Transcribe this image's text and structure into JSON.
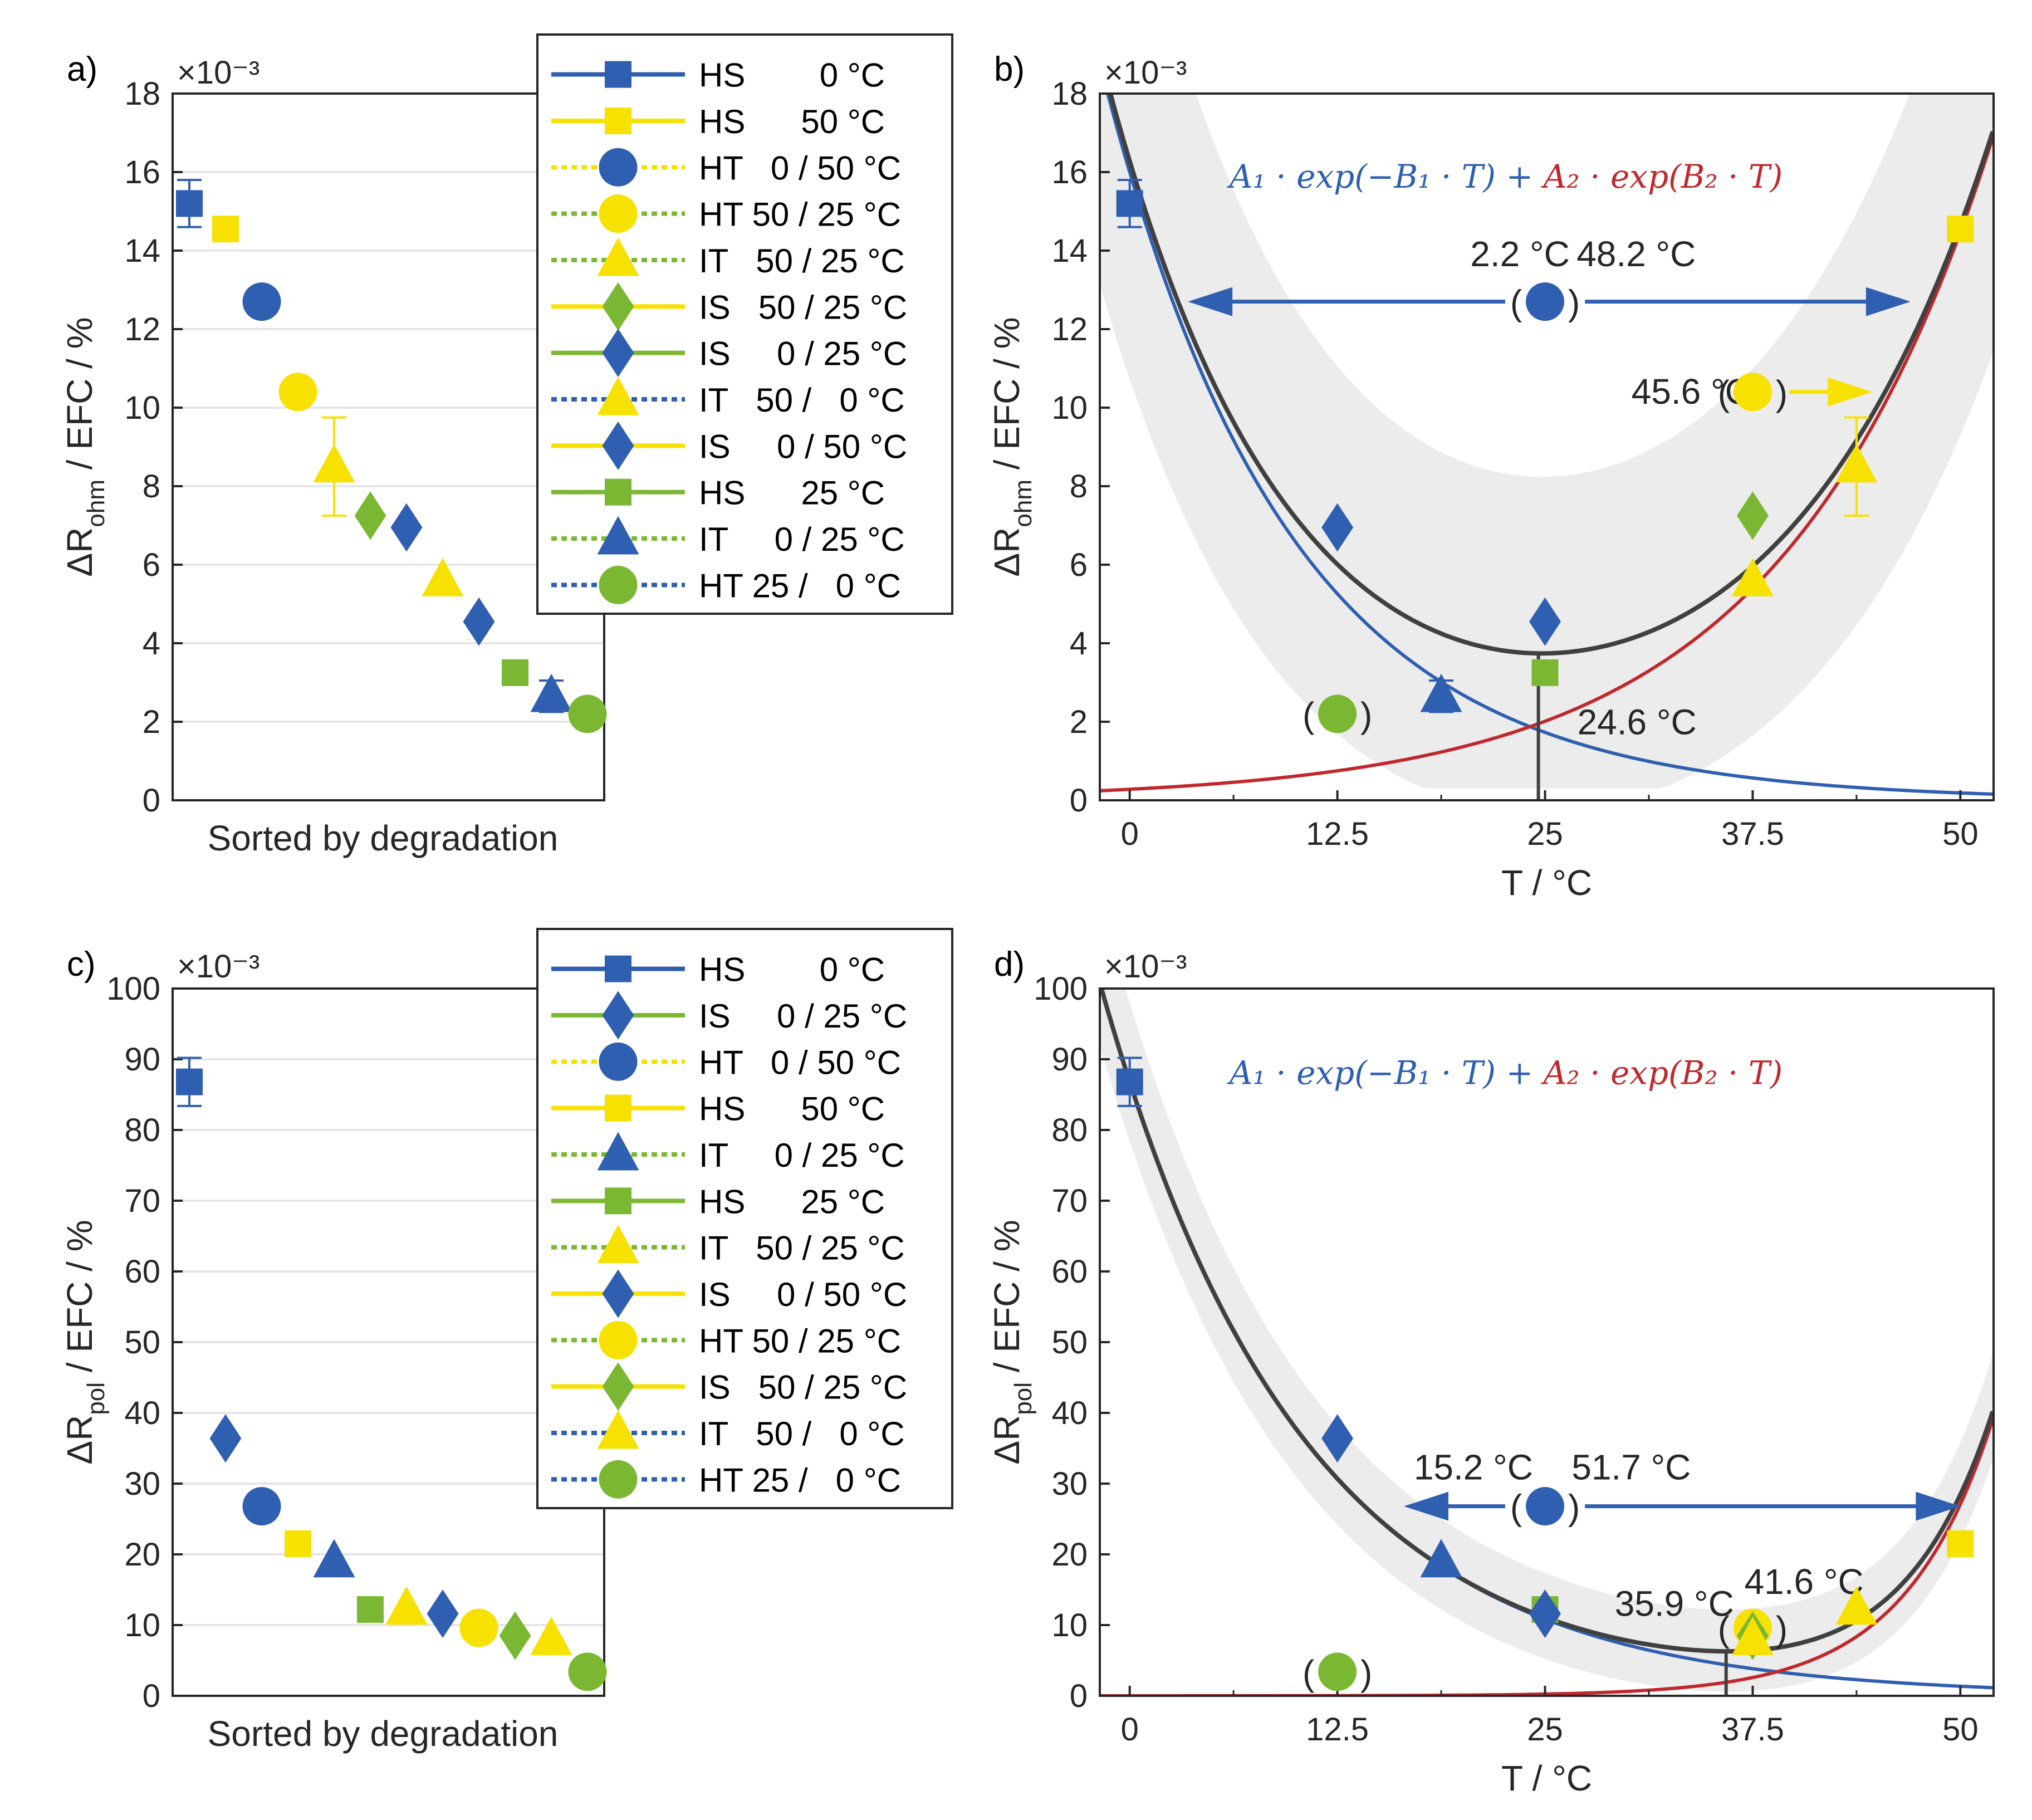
{
  "colors": {
    "blue": "#2f5fb0",
    "yellow": "#f7e100",
    "green": "#7ab833",
    "red": "#c0282d",
    "fit": "#404040",
    "band": "#ececec",
    "grid": "#e5e5e5",
    "axis": "#262626"
  },
  "chart_data": [
    {
      "panel": "a",
      "panel_label": "a)",
      "type": "scatter",
      "exponent_label": "×10⁻³",
      "ylabel_main": "ΔR",
      "ylabel_sub": "ohm",
      "ylabel_rest": "/ EFC  /  %",
      "xlabel": "Sorted by degradation",
      "ylim": [
        0,
        18
      ],
      "yticks": [
        "0",
        "2",
        "4",
        "6",
        "8",
        "10",
        "12",
        "14",
        "16",
        "18"
      ],
      "points": [
        {
          "label": "HS 0 °C",
          "y": 15.2,
          "err": 0.6,
          "color": "blue",
          "marker": "square"
        },
        {
          "label": "HS 50 °C",
          "y": 14.55,
          "color": "yellow",
          "marker": "square"
        },
        {
          "label": "HT 0 / 50 °C",
          "y": 12.7,
          "color": "blue",
          "marker": "circle"
        },
        {
          "label": "HT 50 / 25 °C",
          "y": 10.4,
          "color": "yellow",
          "marker": "circle"
        },
        {
          "label": "IT 50 / 25 °C",
          "y": 8.5,
          "err": 1.25,
          "color": "yellow",
          "marker": "triangle"
        },
        {
          "label": "IS 50 / 25 °C",
          "y": 7.25,
          "color": "green",
          "marker": "diamond"
        },
        {
          "label": "IS 0 / 25 °C",
          "y": 6.95,
          "color": "blue",
          "marker": "diamond"
        },
        {
          "label": "IT 50 / 0 °C",
          "y": 5.6,
          "color": "yellow",
          "marker": "triangle"
        },
        {
          "label": "IS 0 / 50 °C",
          "y": 4.55,
          "color": "blue",
          "marker": "diamond"
        },
        {
          "label": "HS 25 °C",
          "y": 3.25,
          "color": "green",
          "marker": "square"
        },
        {
          "label": "IT 0 / 25 °C",
          "y": 2.65,
          "err": 0.4,
          "color": "blue",
          "marker": "triangle"
        },
        {
          "label": "HT 25 / 0 °C",
          "y": 2.2,
          "color": "green",
          "marker": "circle"
        }
      ],
      "legend": [
        {
          "text": "HS        0 °C",
          "color": "blue",
          "marker": "square",
          "style": "solid"
        },
        {
          "text": "HS      50 °C",
          "color": "yellow",
          "marker": "square",
          "style": "solid"
        },
        {
          "text": "HT   0 / 50 °C",
          "color": "yellow",
          "marker": "circle",
          "style": "dotted",
          "marker_color": "blue"
        },
        {
          "text": "HT 50 / 25 °C",
          "color": "green",
          "marker": "circle",
          "style": "dotted",
          "marker_color": "yellow"
        },
        {
          "text": "IT   50 / 25 °C",
          "color": "green",
          "marker": "triangle",
          "style": "dotted",
          "marker_color": "yellow"
        },
        {
          "text": "IS   50 / 25 °C",
          "color": "yellow",
          "marker": "diamond",
          "style": "solid",
          "marker_color": "green"
        },
        {
          "text": "IS     0 / 25 °C",
          "color": "green",
          "marker": "diamond",
          "style": "solid",
          "marker_color": "blue"
        },
        {
          "text": "IT   50 /   0 °C",
          "color": "blue",
          "marker": "triangle",
          "style": "dotted",
          "marker_color": "yellow"
        },
        {
          "text": "IS     0 / 50 °C",
          "color": "yellow",
          "marker": "diamond",
          "style": "solid",
          "marker_color": "blue"
        },
        {
          "text": "HS      25 °C",
          "color": "green",
          "marker": "square",
          "style": "solid"
        },
        {
          "text": "IT     0 / 25 °C",
          "color": "green",
          "marker": "triangle",
          "style": "dotted",
          "marker_color": "blue"
        },
        {
          "text": "HT 25 /   0 °C",
          "color": "blue",
          "marker": "circle",
          "style": "dotted",
          "marker_color": "green"
        }
      ]
    },
    {
      "panel": "b",
      "panel_label": "b)",
      "type": "scatter",
      "exponent_label": "×10⁻³",
      "ylabel_main": "ΔR",
      "ylabel_sub": "ohm",
      "ylabel_rest": "/ EFC  /  %",
      "xlabel": "T   /   °C",
      "xlim": [
        -1.8,
        52
      ],
      "ylim": [
        0,
        18
      ],
      "xticks": [
        "0",
        "12.5",
        "25",
        "37.5",
        "50"
      ],
      "yticks": [
        "0",
        "2",
        "4",
        "6",
        "8",
        "10",
        "12",
        "14",
        "16",
        "18"
      ],
      "formula_blue": "A₁ · exp(−B₁ · T) +",
      "formula_red": "A₂ · exp(B₂ · T)",
      "fit_blue": {
        "A": 16.0,
        "B": 0.089
      },
      "fit_red": {
        "A": 0.28,
        "B": 0.0789
      },
      "band_halfwidth": 3.6,
      "min_temperature": 24.6,
      "min_label": "24.6 °C",
      "points": [
        {
          "x": 0,
          "y": 15.2,
          "err": 0.6,
          "color": "blue",
          "marker": "square"
        },
        {
          "x": 50,
          "y": 14.55,
          "color": "yellow",
          "marker": "square"
        },
        {
          "x": 25,
          "y": 12.7,
          "color": "blue",
          "marker": "circle",
          "paren": true
        },
        {
          "x": 37.5,
          "y": 10.4,
          "color": "yellow",
          "marker": "circle",
          "paren": true
        },
        {
          "x": 43.75,
          "y": 8.5,
          "err": 1.25,
          "color": "yellow",
          "marker": "triangle"
        },
        {
          "x": 37.5,
          "y": 7.25,
          "color": "green",
          "marker": "diamond"
        },
        {
          "x": 12.5,
          "y": 6.95,
          "color": "blue",
          "marker": "diamond"
        },
        {
          "x": 37.5,
          "y": 5.6,
          "color": "yellow",
          "marker": "triangle"
        },
        {
          "x": 25,
          "y": 4.55,
          "color": "blue",
          "marker": "diamond"
        },
        {
          "x": 25,
          "y": 3.25,
          "color": "green",
          "marker": "square"
        },
        {
          "x": 18.75,
          "y": 2.65,
          "err": 0.4,
          "color": "blue",
          "marker": "triangle"
        },
        {
          "x": 12.5,
          "y": 2.2,
          "color": "green",
          "marker": "circle",
          "paren": true
        }
      ],
      "annotations": [
        {
          "text": "2.2 °C",
          "x": 20.5,
          "y": 13.6,
          "color": "blue"
        },
        {
          "text": "48.2 °C",
          "x": 26.9,
          "y": 13.6,
          "color": "blue"
        },
        {
          "text": "45.6 °C",
          "x": 30.2,
          "y": 10.1,
          "color": "yellow"
        }
      ],
      "arrows": [
        {
          "x1": 22.6,
          "x2": 3.5,
          "y": 12.7,
          "color": "blue"
        },
        {
          "x1": 27.4,
          "x2": 47.0,
          "y": 12.7,
          "color": "blue"
        },
        {
          "x1": 39.7,
          "x2": 44.7,
          "y": 10.4,
          "color": "yellow"
        }
      ]
    },
    {
      "panel": "c",
      "panel_label": "c)",
      "type": "scatter",
      "exponent_label": "×10⁻³",
      "ylabel_main": "ΔR",
      "ylabel_sub": "pol",
      "ylabel_rest": "/ EFC  /  %",
      "xlabel": "Sorted by degradation",
      "ylim": [
        0,
        100
      ],
      "yticks": [
        "0",
        "10",
        "20",
        "30",
        "40",
        "50",
        "60",
        "70",
        "80",
        "90",
        "100"
      ],
      "points": [
        {
          "label": "HS 0 °C",
          "y": 86.8,
          "err": 3.4,
          "color": "blue",
          "marker": "square"
        },
        {
          "label": "IS 0 / 25 °C",
          "y": 36.4,
          "color": "blue",
          "marker": "diamond"
        },
        {
          "label": "HT 0 / 50 °C",
          "y": 26.8,
          "color": "blue",
          "marker": "circle"
        },
        {
          "label": "HS 50 °C",
          "y": 21.5,
          "color": "yellow",
          "marker": "square"
        },
        {
          "label": "IT 0 / 25 °C",
          "y": 19.0,
          "color": "blue",
          "marker": "triangle"
        },
        {
          "label": "HS 25 °C",
          "y": 12.2,
          "color": "green",
          "marker": "square"
        },
        {
          "label": "IT 50 / 25 °C",
          "y": 12.3,
          "color": "yellow",
          "marker": "triangle"
        },
        {
          "label": "IS 0 / 50 °C",
          "y": 11.6,
          "color": "blue",
          "marker": "diamond"
        },
        {
          "label": "HT 50 / 25 °C",
          "y": 9.6,
          "color": "yellow",
          "marker": "circle"
        },
        {
          "label": "IS 50 / 25 °C",
          "y": 8.5,
          "color": "green",
          "marker": "diamond"
        },
        {
          "label": "IT 50 / 0 °C",
          "y": 8.0,
          "color": "yellow",
          "marker": "triangle"
        },
        {
          "label": "HT 25 / 0 °C",
          "y": 3.4,
          "color": "green",
          "marker": "circle"
        }
      ],
      "legend": [
        {
          "text": "HS        0 °C",
          "color": "blue",
          "marker": "square",
          "style": "solid"
        },
        {
          "text": "IS     0 / 25 °C",
          "color": "green",
          "marker": "diamond",
          "style": "solid",
          "marker_color": "blue"
        },
        {
          "text": "HT   0 / 50 °C",
          "color": "yellow",
          "marker": "circle",
          "style": "dotted",
          "marker_color": "blue"
        },
        {
          "text": "HS      50 °C",
          "color": "yellow",
          "marker": "square",
          "style": "solid"
        },
        {
          "text": "IT     0 / 25 °C",
          "color": "green",
          "marker": "triangle",
          "style": "dotted",
          "marker_color": "blue"
        },
        {
          "text": "HS      25 °C",
          "color": "green",
          "marker": "square",
          "style": "solid"
        },
        {
          "text": "IT   50 / 25 °C",
          "color": "green",
          "marker": "triangle",
          "style": "dotted",
          "marker_color": "yellow"
        },
        {
          "text": "IS     0 / 50 °C",
          "color": "yellow",
          "marker": "diamond",
          "style": "solid",
          "marker_color": "blue"
        },
        {
          "text": "HT 50 / 25 °C",
          "color": "green",
          "marker": "circle",
          "style": "dotted",
          "marker_color": "yellow"
        },
        {
          "text": "IS   50 / 25 °C",
          "color": "yellow",
          "marker": "diamond",
          "style": "solid",
          "marker_color": "green"
        },
        {
          "text": "IT   50 /   0 °C",
          "color": "blue",
          "marker": "triangle",
          "style": "dotted",
          "marker_color": "yellow"
        },
        {
          "text": "HT 25 /   0 °C",
          "color": "blue",
          "marker": "circle",
          "style": "dotted",
          "marker_color": "green"
        }
      ]
    },
    {
      "panel": "d",
      "panel_label": "d)",
      "type": "scatter",
      "exponent_label": "×10⁻³",
      "ylabel_main": "ΔR",
      "ylabel_sub": "pol",
      "ylabel_rest": "/ EFC  /  %",
      "xlabel": "T   /   °C",
      "xlim": [
        -1.8,
        52
      ],
      "ylim": [
        0,
        100
      ],
      "xticks": [
        "0",
        "12.5",
        "25",
        "37.5",
        "50"
      ],
      "yticks": [
        "0",
        "10",
        "20",
        "30",
        "40",
        "50",
        "60",
        "70",
        "80",
        "90",
        "100"
      ],
      "formula_blue": "A₁ · exp(−B₁ · T) +",
      "formula_red": "A₂ · exp(B₂ · T)",
      "fit_blue": {
        "A": 86.8,
        "B": 0.0832
      },
      "fit_red": {
        "A": 0.00224,
        "B": 0.188
      },
      "band_halfwidth": 5.5,
      "min_temperature": 35.9,
      "min_label": "35.9 °C",
      "points": [
        {
          "x": 0,
          "y": 86.8,
          "err": 3.4,
          "color": "blue",
          "marker": "square"
        },
        {
          "x": 12.5,
          "y": 36.4,
          "color": "blue",
          "marker": "diamond"
        },
        {
          "x": 25,
          "y": 26.8,
          "color": "blue",
          "marker": "circle",
          "paren": true
        },
        {
          "x": 50,
          "y": 21.5,
          "color": "yellow",
          "marker": "square"
        },
        {
          "x": 18.75,
          "y": 19.0,
          "color": "blue",
          "marker": "triangle"
        },
        {
          "x": 25,
          "y": 12.2,
          "color": "green",
          "marker": "square"
        },
        {
          "x": 43.75,
          "y": 12.3,
          "color": "yellow",
          "marker": "triangle"
        },
        {
          "x": 25,
          "y": 11.6,
          "color": "blue",
          "marker": "diamond"
        },
        {
          "x": 37.5,
          "y": 9.6,
          "color": "yellow",
          "marker": "circle",
          "paren": true
        },
        {
          "x": 37.5,
          "y": 8.5,
          "color": "green",
          "marker": "diamond"
        },
        {
          "x": 37.5,
          "y": 8.0,
          "color": "yellow",
          "marker": "triangle"
        },
        {
          "x": 12.5,
          "y": 3.4,
          "color": "green",
          "marker": "circle",
          "paren": true
        }
      ],
      "annotations": [
        {
          "text": "15.2 °C",
          "x": 17.1,
          "y": 30.6,
          "color": "blue"
        },
        {
          "text": "51.7 °C",
          "x": 26.6,
          "y": 30.6,
          "color": "blue"
        },
        {
          "text": "41.6 °C",
          "x": 37.0,
          "y": 14.4,
          "color": "yellow"
        }
      ],
      "arrows": [
        {
          "x1": 22.6,
          "x2": 16.5,
          "y": 26.8,
          "color": "blue"
        },
        {
          "x1": 27.4,
          "x2": 50.0,
          "y": 26.8,
          "color": "blue"
        }
      ]
    }
  ]
}
